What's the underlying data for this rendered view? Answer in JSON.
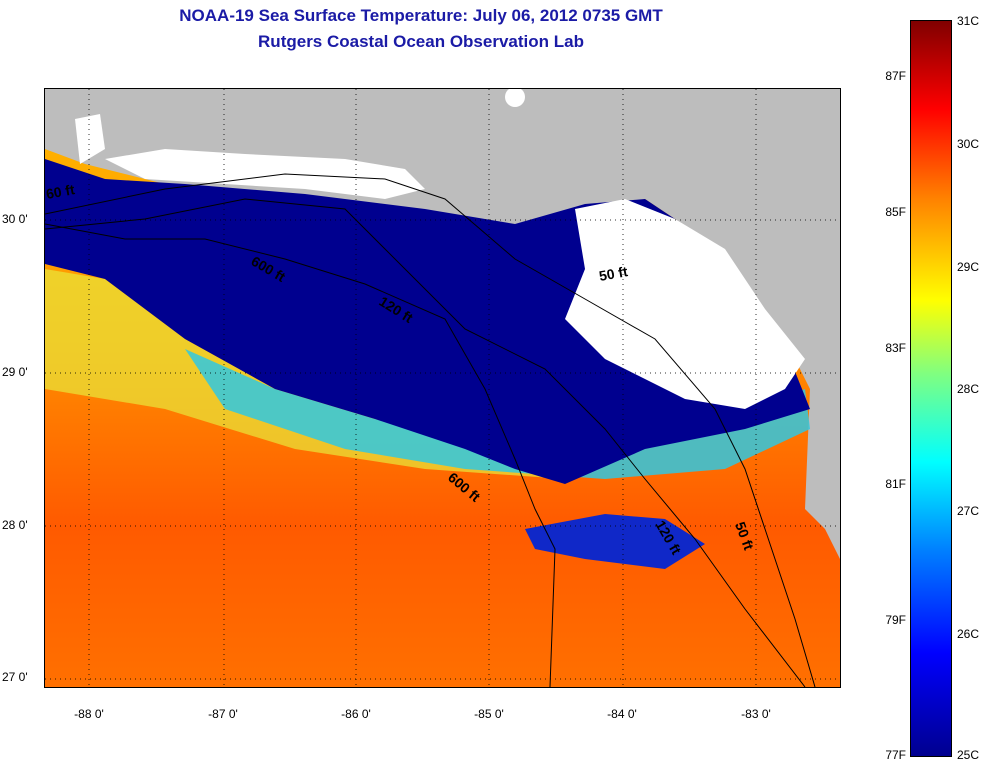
{
  "title": {
    "line1": "NOAA-19 Sea Surface Temperature:  July 06, 2012 0735 GMT",
    "line2": "Rutgers Coastal Ocean Observation Lab"
  },
  "map": {
    "latitudes": [
      {
        "label": "30 0'"
      },
      {
        "label": "29 0'"
      },
      {
        "label": "28 0'"
      },
      {
        "label": "27 0'"
      }
    ],
    "longitudes": [
      {
        "label": "-88 0'"
      },
      {
        "label": "-87 0'"
      },
      {
        "label": "-86 0'"
      },
      {
        "label": "-85 0'"
      },
      {
        "label": "-84 0'"
      },
      {
        "label": "-83 0'"
      }
    ],
    "contour_labels": [
      {
        "text": "60 ft"
      },
      {
        "text": "600 ft"
      },
      {
        "text": "120 ft"
      },
      {
        "text": "50 ft"
      },
      {
        "text": "600 ft"
      },
      {
        "text": "120 ft"
      },
      {
        "text": "50 ft"
      }
    ],
    "colors": {
      "land": "#bdbdbd",
      "cloud": "#ffffff",
      "cold": "#00008f",
      "warm": "#ff6000"
    }
  },
  "colorbar": {
    "fahrenheit": [
      "87F",
      "85F",
      "83F",
      "81F",
      "79F",
      "77F"
    ],
    "celsius": [
      "31C",
      "30C",
      "29C",
      "28C",
      "27C",
      "26C",
      "25C"
    ]
  }
}
